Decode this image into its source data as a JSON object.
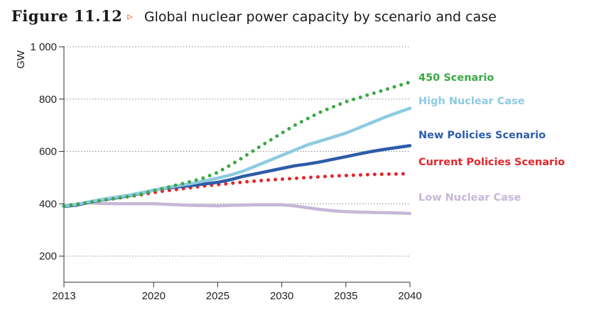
{
  "figure": {
    "label": "Figure 11.12",
    "arrow": "▹",
    "title": "Global nuclear power capacity by scenario and case"
  },
  "chart_data": {
    "type": "line",
    "title": "Global nuclear power capacity by scenario and case",
    "xlabel": "",
    "ylabel": "GW",
    "xlim": [
      2013,
      2040
    ],
    "ylim": [
      100,
      1000
    ],
    "x_ticks": [
      2013,
      2020,
      2025,
      2030,
      2035,
      2040
    ],
    "x_tick_labels": [
      "2013",
      "2020",
      "2025",
      "2030",
      "2035",
      "2040"
    ],
    "y_ticks": [
      200,
      400,
      600,
      800,
      1000
    ],
    "y_tick_labels": [
      "200",
      "400",
      "600",
      "800",
      "1 000"
    ],
    "grid": "horizontal dotted",
    "legend": "right, inline at line ends",
    "series": [
      {
        "name": "450 Scenario",
        "color": "#3aa845",
        "style": "dotted",
        "x": [
          2013,
          2014,
          2015,
          2016,
          2017,
          2018,
          2019,
          2020,
          2021,
          2022,
          2023,
          2024,
          2025,
          2026,
          2027,
          2028,
          2029,
          2030,
          2031,
          2032,
          2033,
          2034,
          2035,
          2036,
          2037,
          2038,
          2039,
          2040
        ],
        "values": [
          392,
          398,
          405,
          413,
          420,
          428,
          436,
          450,
          462,
          474,
          486,
          500,
          520,
          548,
          578,
          610,
          640,
          670,
          700,
          725,
          750,
          770,
          790,
          805,
          820,
          835,
          850,
          865
        ]
      },
      {
        "name": "High Nuclear Case",
        "color": "#8fcbe0",
        "style": "solid",
        "x": [
          2013,
          2014,
          2015,
          2016,
          2017,
          2018,
          2019,
          2020,
          2021,
          2022,
          2023,
          2024,
          2025,
          2026,
          2027,
          2028,
          2029,
          2030,
          2031,
          2032,
          2033,
          2034,
          2035,
          2036,
          2037,
          2038,
          2039,
          2040
        ],
        "values": [
          392,
          398,
          408,
          417,
          425,
          432,
          442,
          452,
          462,
          470,
          478,
          488,
          498,
          510,
          525,
          545,
          565,
          585,
          605,
          625,
          640,
          655,
          670,
          690,
          710,
          730,
          748,
          765
        ]
      },
      {
        "name": "New Policies Scenario",
        "color": "#2d5ca8",
        "style": "solid",
        "x": [
          2013,
          2014,
          2015,
          2016,
          2017,
          2018,
          2019,
          2020,
          2021,
          2022,
          2023,
          2024,
          2025,
          2026,
          2027,
          2028,
          2029,
          2030,
          2031,
          2032,
          2033,
          2034,
          2035,
          2036,
          2037,
          2038,
          2039,
          2040
        ],
        "values": [
          390,
          395,
          406,
          415,
          422,
          430,
          440,
          452,
          460,
          465,
          470,
          476,
          482,
          492,
          505,
          515,
          525,
          535,
          545,
          552,
          560,
          570,
          580,
          590,
          600,
          608,
          615,
          622
        ]
      },
      {
        "name": "Current Policies Scenario",
        "color": "#e3262b",
        "style": "dotted",
        "x": [
          2013,
          2014,
          2015,
          2016,
          2017,
          2018,
          2019,
          2020,
          2021,
          2022,
          2023,
          2024,
          2025,
          2026,
          2027,
          2028,
          2029,
          2030,
          2031,
          2032,
          2033,
          2034,
          2035,
          2036,
          2037,
          2038,
          2039,
          2040
        ],
        "values": [
          392,
          398,
          406,
          414,
          420,
          427,
          434,
          443,
          450,
          456,
          462,
          468,
          473,
          478,
          483,
          487,
          491,
          494,
          497,
          500,
          503,
          506,
          508,
          510,
          512,
          513,
          514,
          515
        ]
      },
      {
        "name": "Low Nuclear Case",
        "color": "#c6b8d8",
        "style": "solid",
        "x": [
          2013,
          2014,
          2015,
          2016,
          2017,
          2018,
          2019,
          2020,
          2021,
          2022,
          2023,
          2024,
          2025,
          2026,
          2027,
          2028,
          2029,
          2030,
          2031,
          2032,
          2033,
          2034,
          2035,
          2036,
          2037,
          2038,
          2039,
          2040
        ],
        "values": [
          392,
          398,
          404,
          401,
          400,
          400,
          400,
          400,
          398,
          396,
          394,
          393,
          392,
          394,
          395,
          396,
          396,
          396,
          392,
          385,
          378,
          373,
          370,
          368,
          367,
          366,
          365,
          363
        ]
      }
    ]
  }
}
